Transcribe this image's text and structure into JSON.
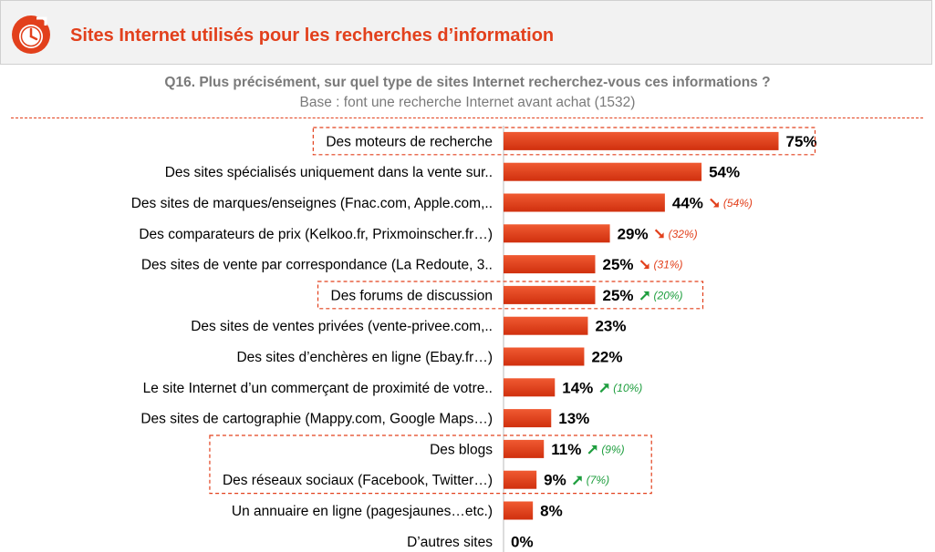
{
  "header": {
    "title": "Sites Internet utilisés pour les recherches d’information"
  },
  "question": {
    "text": "Q16.  Plus précisément, sur quel type de sites Internet recherchez-vous ces informations ?",
    "base": "Base : font une recherche Internet avant achat (1532)"
  },
  "colors": {
    "accent": "#e2401c",
    "up": "#1e9e3e",
    "down": "#e2401c"
  },
  "chart_data": {
    "type": "bar",
    "orientation": "horizontal",
    "title": "Sites Internet utilisés pour les recherches d’information",
    "categories": [
      "Des moteurs de recherche",
      "Des sites spécialisés uniquement dans la vente sur..",
      "Des sites de marques/enseignes (Fnac.com, Apple.com,..",
      "Des comparateurs de prix (Kelkoo.fr, Prixmoinscher.fr…)",
      "Des sites de vente par correspondance (La Redoute, 3..",
      "Des forums de discussion",
      "Des sites de ventes privées (vente-privee.com,..",
      "Des sites d’enchères en ligne (Ebay.fr…)",
      "Le site Internet d’un commerçant de proximité de votre..",
      "Des sites de cartographie (Mappy.com, Google Maps…)",
      "Des blogs",
      "Des réseaux sociaux (Facebook, Twitter…)",
      "Un annuaire en ligne (pagesjaunes…etc.)",
      "D’autres sites"
    ],
    "values": [
      75,
      54,
      44,
      29,
      25,
      25,
      23,
      22,
      14,
      13,
      11,
      9,
      8,
      0
    ],
    "value_labels": [
      "75%",
      "54%",
      "44%",
      "29%",
      "25%",
      "25%",
      "23%",
      "22%",
      "14%",
      "13%",
      "11%",
      "9%",
      "8%",
      "0%"
    ],
    "comparisons": [
      null,
      null,
      {
        "trend": "down",
        "label": "(54%)"
      },
      {
        "trend": "down",
        "label": "(32%)"
      },
      {
        "trend": "down",
        "label": "(31%)"
      },
      {
        "trend": "up",
        "label": "(20%)"
      },
      null,
      null,
      {
        "trend": "up",
        "label": "(10%)"
      },
      null,
      {
        "trend": "up",
        "label": "(9%)"
      },
      {
        "trend": "up",
        "label": "(7%)"
      },
      null,
      null
    ],
    "highlight_groups": [
      [
        0
      ],
      [
        5
      ],
      [
        10,
        11
      ]
    ],
    "xlim": [
      0,
      100
    ],
    "unit": "%"
  }
}
